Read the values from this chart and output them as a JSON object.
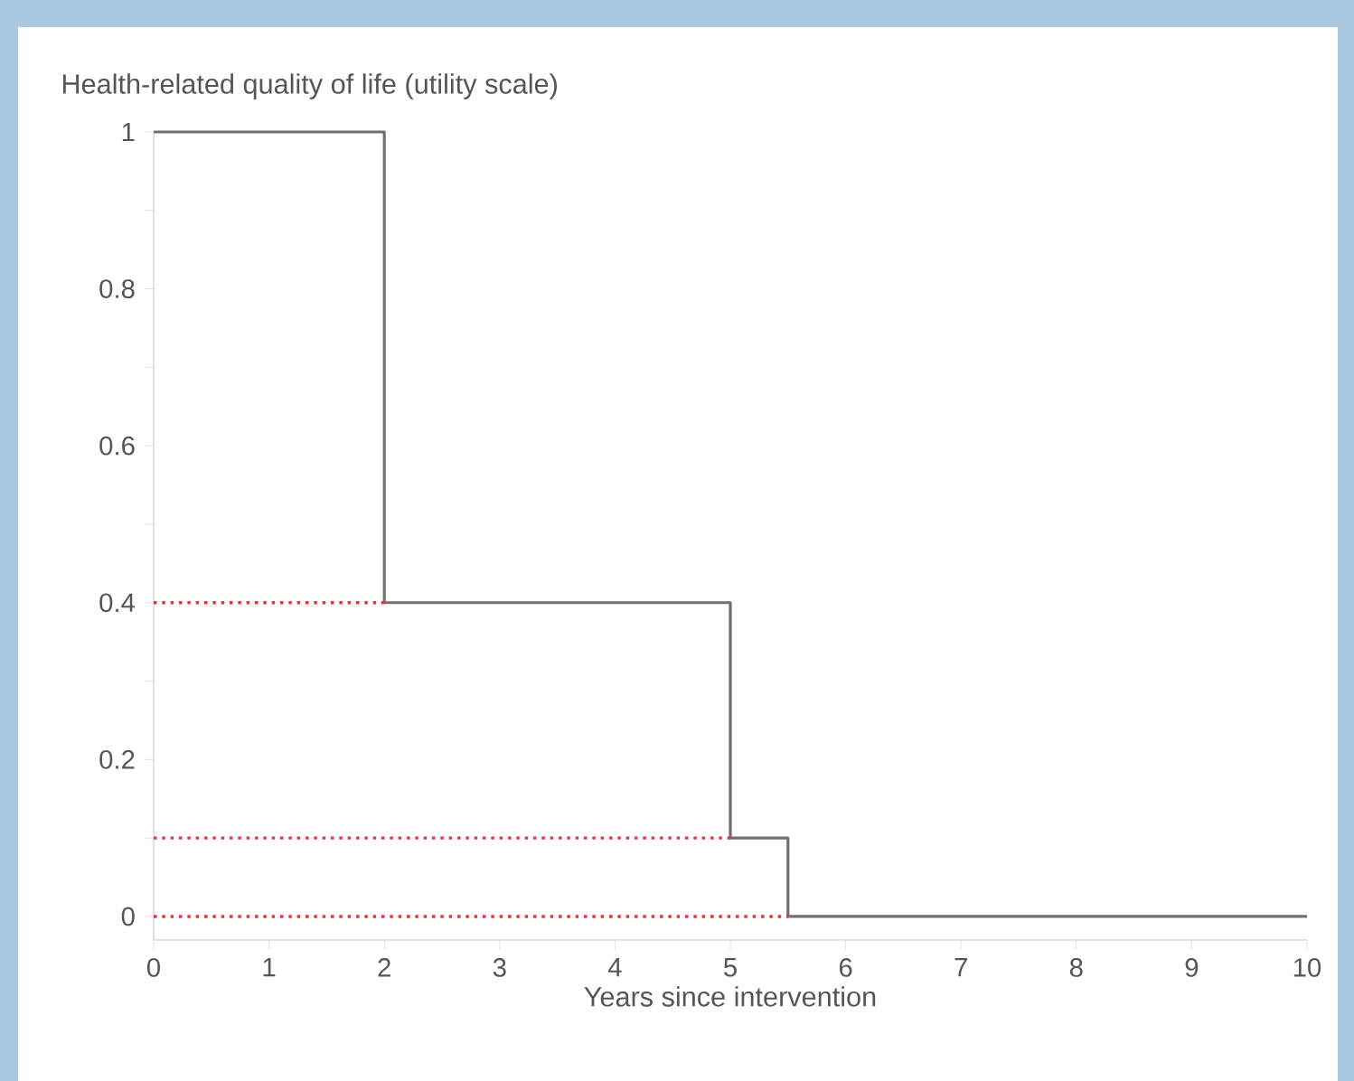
{
  "chart_data": {
    "type": "step",
    "ylabel": "Health-related quality of life (utility scale)",
    "xlabel": "Years since intervention",
    "xlim": [
      0,
      10
    ],
    "xticks": [
      0,
      1,
      2,
      3,
      4,
      5,
      6,
      7,
      8,
      9,
      10
    ],
    "ylim": [
      -0.03,
      1
    ],
    "yticks": [
      0,
      {
        "value": 0.1,
        "label": null
      },
      0.2,
      {
        "value": 0.3,
        "label": null
      },
      0.4,
      {
        "value": 0.5,
        "label": null
      },
      0.6,
      {
        "value": 0.7,
        "label": null
      },
      0.8,
      {
        "value": 0.9,
        "label": null
      },
      1
    ],
    "grid": false,
    "series": [
      {
        "color": "#707070",
        "line_style": "solid",
        "x": [
          0,
          2,
          5,
          5.5,
          10
        ],
        "values": [
          1,
          0.4,
          0.1,
          0,
          0
        ]
      },
      {
        "type": "line",
        "color": "#e8323c",
        "line_style": "dotted",
        "x": [
          0,
          2
        ],
        "values": [
          0.4,
          0.4
        ]
      },
      {
        "type": "line",
        "color": "#e8323c",
        "line_style": "dotted",
        "x": [
          0,
          5
        ],
        "values": [
          0.1,
          0.1
        ]
      },
      {
        "type": "line",
        "color": "#e8323c",
        "line_style": "dotted",
        "x": [
          0,
          5.5
        ],
        "values": [
          0,
          0
        ]
      }
    ]
  }
}
